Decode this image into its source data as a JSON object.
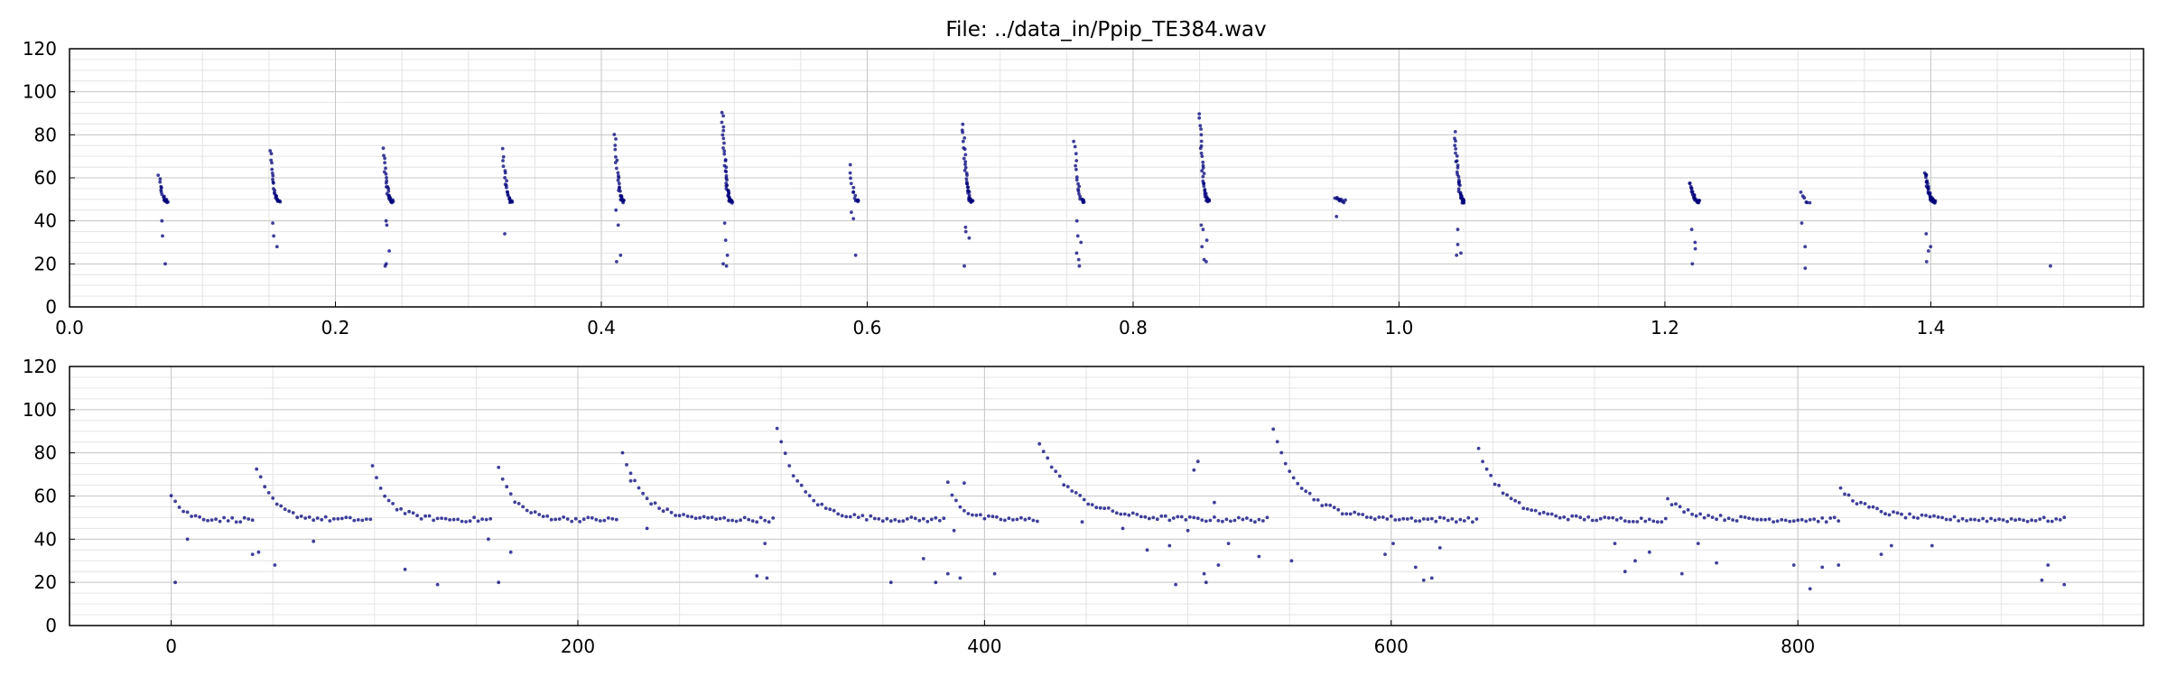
{
  "figure": {
    "title": "File: ../data_in/Ppip_TE384.wav"
  },
  "colors": {
    "point": "#00007a",
    "grid_major": "#c8c8c8",
    "grid_minor": "#e4e4e4",
    "axes": "#000000"
  },
  "chart_data": [
    {
      "type": "scatter",
      "title": "File: ../data_in/Ppip_TE384.wav",
      "xlabel": "",
      "ylabel": "",
      "xlim": [
        0.0,
        1.56
      ],
      "ylim": [
        0,
        120
      ],
      "grid": true,
      "xticks": [
        0.0,
        0.2,
        0.4,
        0.6,
        0.8,
        1.0,
        1.2,
        1.4
      ],
      "xtick_labels": [
        "0.0",
        "0.2",
        "0.4",
        "0.6",
        "0.8",
        "1.0",
        "1.2",
        "1.4"
      ],
      "yticks": [
        0,
        20,
        40,
        60,
        80,
        100,
        120
      ],
      "ytick_labels": [
        "0",
        "20",
        "40",
        "60",
        "80",
        "100",
        "120"
      ],
      "pulses": [
        {
          "t": 0.068,
          "max": 61,
          "n": 18,
          "outliers": [
            40,
            33,
            20
          ]
        },
        {
          "t": 0.152,
          "max": 73,
          "n": 26,
          "outliers": [
            39,
            33,
            28
          ]
        },
        {
          "t": 0.237,
          "max": 73,
          "n": 28,
          "outliers": [
            40,
            38,
            26,
            19,
            20
          ]
        },
        {
          "t": 0.327,
          "max": 73,
          "n": 24,
          "outliers": [
            34
          ]
        },
        {
          "t": 0.411,
          "max": 80,
          "n": 30,
          "outliers": [
            45,
            38,
            24,
            21
          ]
        },
        {
          "t": 0.492,
          "max": 91,
          "n": 44,
          "outliers": [
            39,
            31,
            24,
            20,
            19
          ]
        },
        {
          "t": 0.588,
          "max": 66,
          "n": 14,
          "outliers": [
            44,
            41,
            24
          ]
        },
        {
          "t": 0.673,
          "max": 85,
          "n": 40,
          "outliers": [
            37,
            35,
            32,
            19
          ]
        },
        {
          "t": 0.757,
          "max": 77,
          "n": 22,
          "outliers": [
            40,
            33,
            30,
            25,
            22,
            19
          ]
        },
        {
          "t": 0.851,
          "max": 90,
          "n": 38,
          "outliers": [
            38,
            36,
            31,
            28,
            22,
            21
          ]
        },
        {
          "t": 0.953,
          "max": 51,
          "n": 10,
          "outliers": [
            42
          ]
        },
        {
          "t": 1.043,
          "max": 81,
          "n": 40,
          "outliers": [
            36,
            29,
            25,
            24
          ]
        },
        {
          "t": 1.22,
          "max": 58,
          "n": 26,
          "outliers": [
            36,
            30,
            27,
            20
          ]
        },
        {
          "t": 1.303,
          "max": 53,
          "n": 6,
          "outliers": [
            39,
            28,
            18
          ]
        },
        {
          "t": 1.397,
          "max": 63,
          "n": 44,
          "outliers": [
            34,
            26,
            28,
            21
          ]
        },
        {
          "t": 1.49,
          "max": 19,
          "n": 0,
          "outliers": []
        }
      ]
    },
    {
      "type": "scatter",
      "title": "",
      "xlabel": "",
      "ylabel": "",
      "xlim": [
        -50,
        970
      ],
      "ylim": [
        0,
        120
      ],
      "grid": true,
      "xticks": [
        0,
        200,
        400,
        600,
        800
      ],
      "xtick_labels": [
        "0",
        "200",
        "400",
        "600",
        "800"
      ],
      "yticks": [
        0,
        20,
        40,
        60,
        80,
        100,
        120
      ],
      "ytick_labels": [
        "0",
        "20",
        "40",
        "60",
        "80",
        "100",
        "120"
      ],
      "segments": [
        {
          "start": 0,
          "end": 40,
          "peak": 61
        },
        {
          "start": 42,
          "end": 99,
          "peak": 73
        },
        {
          "start": 99,
          "end": 157,
          "peak": 73
        },
        {
          "start": 161,
          "end": 219,
          "peak": 73
        },
        {
          "start": 222,
          "end": 296,
          "peak": 80
        },
        {
          "start": 298,
          "end": 380,
          "peak": 91
        },
        {
          "start": 382,
          "end": 426,
          "peak": 66
        },
        {
          "start": 427,
          "end": 540,
          "peak": 85
        },
        {
          "start": 542,
          "end": 642,
          "peak": 90
        },
        {
          "start": 643,
          "end": 735,
          "peak": 81
        },
        {
          "start": 736,
          "end": 820,
          "peak": 58
        },
        {
          "start": 821,
          "end": 931,
          "peak": 63
        }
      ],
      "outliers": [
        [
          2,
          20
        ],
        [
          8,
          40
        ],
        [
          40,
          33
        ],
        [
          43,
          34
        ],
        [
          51,
          28
        ],
        [
          70,
          39
        ],
        [
          115,
          26
        ],
        [
          131,
          19
        ],
        [
          156,
          40
        ],
        [
          161,
          20
        ],
        [
          167,
          34
        ],
        [
          226,
          67
        ],
        [
          234,
          45
        ],
        [
          288,
          23
        ],
        [
          292,
          38
        ],
        [
          293,
          22
        ],
        [
          354,
          20
        ],
        [
          370,
          31
        ],
        [
          376,
          20
        ],
        [
          382,
          24
        ],
        [
          385,
          44
        ],
        [
          388,
          22
        ],
        [
          390,
          66
        ],
        [
          405,
          24
        ],
        [
          448,
          48
        ],
        [
          468,
          45
        ],
        [
          480,
          35
        ],
        [
          491,
          37
        ],
        [
          494,
          19
        ],
        [
          500,
          44
        ],
        [
          503,
          72
        ],
        [
          505,
          76
        ],
        [
          508,
          24
        ],
        [
          509,
          20
        ],
        [
          513,
          57
        ],
        [
          515,
          28
        ],
        [
          520,
          38
        ],
        [
          535,
          32
        ],
        [
          551,
          30
        ],
        [
          597,
          33
        ],
        [
          601,
          38
        ],
        [
          612,
          27
        ],
        [
          616,
          21
        ],
        [
          620,
          22
        ],
        [
          624,
          36
        ],
        [
          710,
          38
        ],
        [
          715,
          25
        ],
        [
          720,
          30
        ],
        [
          727,
          34
        ],
        [
          743,
          24
        ],
        [
          751,
          38
        ],
        [
          760,
          29
        ],
        [
          798,
          28
        ],
        [
          806,
          17
        ],
        [
          812,
          27
        ],
        [
          820,
          28
        ],
        [
          841,
          33
        ],
        [
          846,
          37
        ],
        [
          866,
          37
        ],
        [
          920,
          21
        ],
        [
          923,
          28
        ],
        [
          931,
          19
        ]
      ]
    }
  ]
}
